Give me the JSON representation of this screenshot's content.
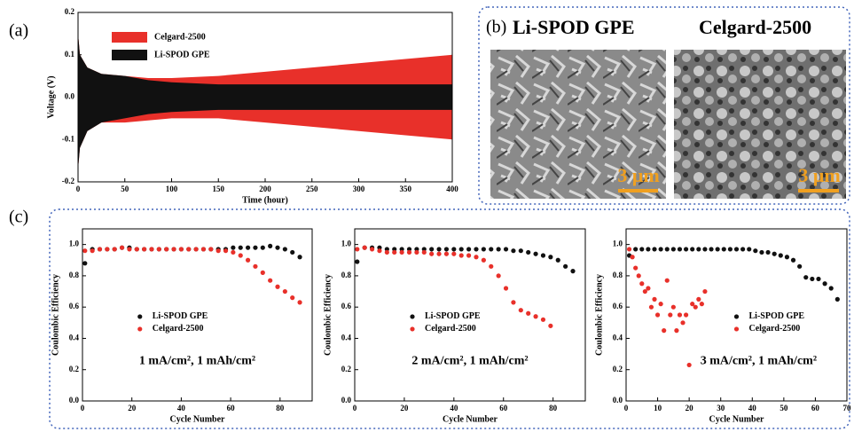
{
  "panel_labels": [
    "(a)",
    "(b)",
    "(c)"
  ],
  "images": [
    {
      "title": "Li-SPOD GPE",
      "scale_bar": "3 μm"
    },
    {
      "title": "Celgard-2500",
      "scale_bar": "3 μm"
    }
  ],
  "chart_data": [
    {
      "type": "band",
      "xlabel": "Time (hour)",
      "ylabel": "Voltage (V)",
      "legend": "upper left",
      "xlim": [
        0,
        400
      ],
      "ylim": [
        -0.2,
        0.2
      ],
      "xticks": [
        0,
        50,
        100,
        150,
        200,
        250,
        300,
        350,
        400
      ],
      "yticks": [
        -0.2,
        -0.1,
        {
          "value": 0,
          "label": "0.0"
        },
        0.1,
        0.2
      ],
      "x": [
        0,
        2,
        10,
        25,
        50,
        75,
        100,
        150,
        200,
        250,
        300,
        350,
        400
      ],
      "series": [
        {
          "name": "Celgard-2500",
          "color": "#e8302a",
          "values": [
            0.15,
            0.1,
            0.07,
            0.055,
            0.05,
            0.045,
            0.045,
            0.05,
            0.06,
            0.07,
            0.08,
            0.09,
            0.1
          ],
          "lower": [
            -0.17,
            -0.12,
            -0.08,
            -0.06,
            -0.06,
            -0.055,
            -0.05,
            -0.05,
            -0.06,
            -0.07,
            -0.08,
            -0.09,
            -0.1
          ]
        },
        {
          "name": "Li-SPOD GPE",
          "color": "#111111",
          "values": [
            0.15,
            0.1,
            0.07,
            0.055,
            0.05,
            0.04,
            0.035,
            0.03,
            0.03,
            0.03,
            0.03,
            0.03,
            0.03
          ],
          "lower": [
            -0.17,
            -0.12,
            -0.08,
            -0.06,
            -0.05,
            -0.04,
            -0.035,
            -0.03,
            -0.03,
            -0.03,
            -0.03,
            -0.03,
            -0.03
          ]
        }
      ]
    },
    {
      "type": "scatter",
      "xlabel": "Cycle Number",
      "ylabel": "Coulombic Efficiency",
      "annotation": "1 mA/cm², 1 mAh/cm²",
      "legend": "center left",
      "xlim": [
        0,
        93
      ],
      "ylim": [
        0,
        1.1
      ],
      "xticks": [
        0,
        20,
        40,
        60,
        80
      ],
      "yticks": [
        {
          "value": 0,
          "label": "0.0"
        },
        0.2,
        0.4,
        0.6,
        0.8,
        {
          "value": 1,
          "label": "1.0"
        }
      ],
      "series": [
        {
          "name": "Li-SPOD GPE",
          "color": "#111111",
          "x": [
            1,
            4,
            7,
            10,
            13,
            16,
            19,
            22,
            25,
            28,
            31,
            34,
            37,
            40,
            43,
            46,
            49,
            52,
            55,
            58,
            61,
            64,
            67,
            70,
            73,
            76,
            79,
            82,
            85,
            88
          ],
          "values": [
            0.88,
            0.97,
            0.97,
            0.97,
            0.97,
            0.98,
            0.98,
            0.97,
            0.97,
            0.97,
            0.97,
            0.97,
            0.97,
            0.97,
            0.97,
            0.97,
            0.97,
            0.97,
            0.97,
            0.97,
            0.98,
            0.98,
            0.98,
            0.98,
            0.98,
            0.99,
            0.98,
            0.97,
            0.95,
            0.92
          ]
        },
        {
          "name": "Celgard-2500",
          "color": "#e8302a",
          "x": [
            1,
            4,
            7,
            10,
            13,
            16,
            19,
            22,
            25,
            28,
            31,
            34,
            37,
            40,
            43,
            46,
            49,
            52,
            55,
            58,
            61,
            64,
            67,
            70,
            73,
            76,
            79,
            82,
            85,
            88
          ],
          "values": [
            0.96,
            0.96,
            0.97,
            0.97,
            0.97,
            0.98,
            0.97,
            0.97,
            0.97,
            0.97,
            0.97,
            0.97,
            0.97,
            0.97,
            0.97,
            0.97,
            0.97,
            0.97,
            0.96,
            0.96,
            0.95,
            0.93,
            0.9,
            0.86,
            0.82,
            0.77,
            0.73,
            0.7,
            0.66,
            0.63
          ]
        }
      ]
    },
    {
      "type": "scatter",
      "xlabel": "Cycle Number",
      "ylabel": "Coulombic Efficiency",
      "annotation": "2 mA/cm², 1 mAh/cm²",
      "legend": "center left",
      "xlim": [
        0,
        93
      ],
      "ylim": [
        0,
        1.1
      ],
      "xticks": [
        0,
        20,
        40,
        60,
        80
      ],
      "yticks": [
        {
          "value": 0,
          "label": "0.0"
        },
        0.2,
        0.4,
        0.6,
        0.8,
        {
          "value": 1,
          "label": "1.0"
        }
      ],
      "series": [
        {
          "name": "Li-SPOD GPE",
          "color": "#111111",
          "x": [
            1,
            4,
            7,
            10,
            13,
            16,
            19,
            22,
            25,
            28,
            31,
            34,
            37,
            40,
            43,
            46,
            49,
            52,
            55,
            58,
            61,
            64,
            67,
            70,
            73,
            76,
            79,
            82,
            85,
            88
          ],
          "values": [
            0.89,
            0.98,
            0.98,
            0.98,
            0.97,
            0.97,
            0.97,
            0.97,
            0.97,
            0.97,
            0.97,
            0.97,
            0.97,
            0.97,
            0.97,
            0.97,
            0.97,
            0.97,
            0.97,
            0.97,
            0.97,
            0.96,
            0.96,
            0.95,
            0.94,
            0.93,
            0.92,
            0.9,
            0.86,
            0.83
          ]
        },
        {
          "name": "Celgard-2500",
          "color": "#e8302a",
          "x": [
            1,
            4,
            7,
            10,
            13,
            16,
            19,
            22,
            25,
            28,
            31,
            34,
            37,
            40,
            43,
            46,
            49,
            52,
            55,
            58,
            61,
            64,
            67,
            70,
            73,
            76,
            79
          ],
          "values": [
            0.97,
            0.98,
            0.97,
            0.96,
            0.95,
            0.95,
            0.95,
            0.95,
            0.95,
            0.95,
            0.94,
            0.94,
            0.94,
            0.94,
            0.93,
            0.93,
            0.92,
            0.9,
            0.86,
            0.8,
            0.72,
            0.63,
            0.58,
            0.56,
            0.54,
            0.52,
            0.48
          ]
        }
      ]
    },
    {
      "type": "scatter",
      "xlabel": "Cycle Number",
      "ylabel": "Coulombic Efficiency",
      "annotation": "3 mA/cm², 1 mAh/cm²",
      "legend": "center right",
      "xlim": [
        0,
        70
      ],
      "ylim": [
        0,
        1.1
      ],
      "xticks": [
        0,
        10,
        20,
        30,
        40,
        50,
        60,
        70
      ],
      "yticks": [
        {
          "value": 0,
          "label": "0.0"
        },
        0.2,
        0.4,
        0.6,
        0.8,
        {
          "value": 1,
          "label": "1.0"
        }
      ],
      "series": [
        {
          "name": "Li-SPOD GPE",
          "color": "#111111",
          "x": [
            1,
            3,
            5,
            7,
            9,
            11,
            13,
            15,
            17,
            19,
            21,
            23,
            25,
            27,
            29,
            31,
            33,
            35,
            37,
            39,
            41,
            43,
            45,
            47,
            49,
            51,
            53,
            55,
            57,
            59,
            61,
            63,
            65,
            67
          ],
          "values": [
            0.93,
            0.97,
            0.97,
            0.97,
            0.97,
            0.97,
            0.97,
            0.97,
            0.97,
            0.97,
            0.97,
            0.97,
            0.97,
            0.97,
            0.97,
            0.97,
            0.97,
            0.97,
            0.97,
            0.97,
            0.96,
            0.95,
            0.95,
            0.94,
            0.93,
            0.92,
            0.9,
            0.86,
            0.79,
            0.78,
            0.78,
            0.75,
            0.72,
            0.65
          ]
        },
        {
          "name": "Celgard-2500",
          "color": "#e8302a",
          "x": [
            1,
            2,
            3,
            4,
            5,
            6,
            7,
            8,
            9,
            10,
            11,
            12,
            13,
            14,
            15,
            16,
            17,
            18,
            19,
            20,
            21,
            22,
            23,
            24,
            25
          ],
          "values": [
            0.97,
            0.92,
            0.85,
            0.8,
            0.75,
            0.7,
            0.72,
            0.6,
            0.65,
            0.55,
            0.62,
            0.45,
            0.77,
            0.55,
            0.6,
            0.45,
            0.55,
            0.5,
            0.55,
            0.23,
            0.62,
            0.6,
            0.65,
            0.62,
            0.7
          ]
        }
      ]
    }
  ]
}
